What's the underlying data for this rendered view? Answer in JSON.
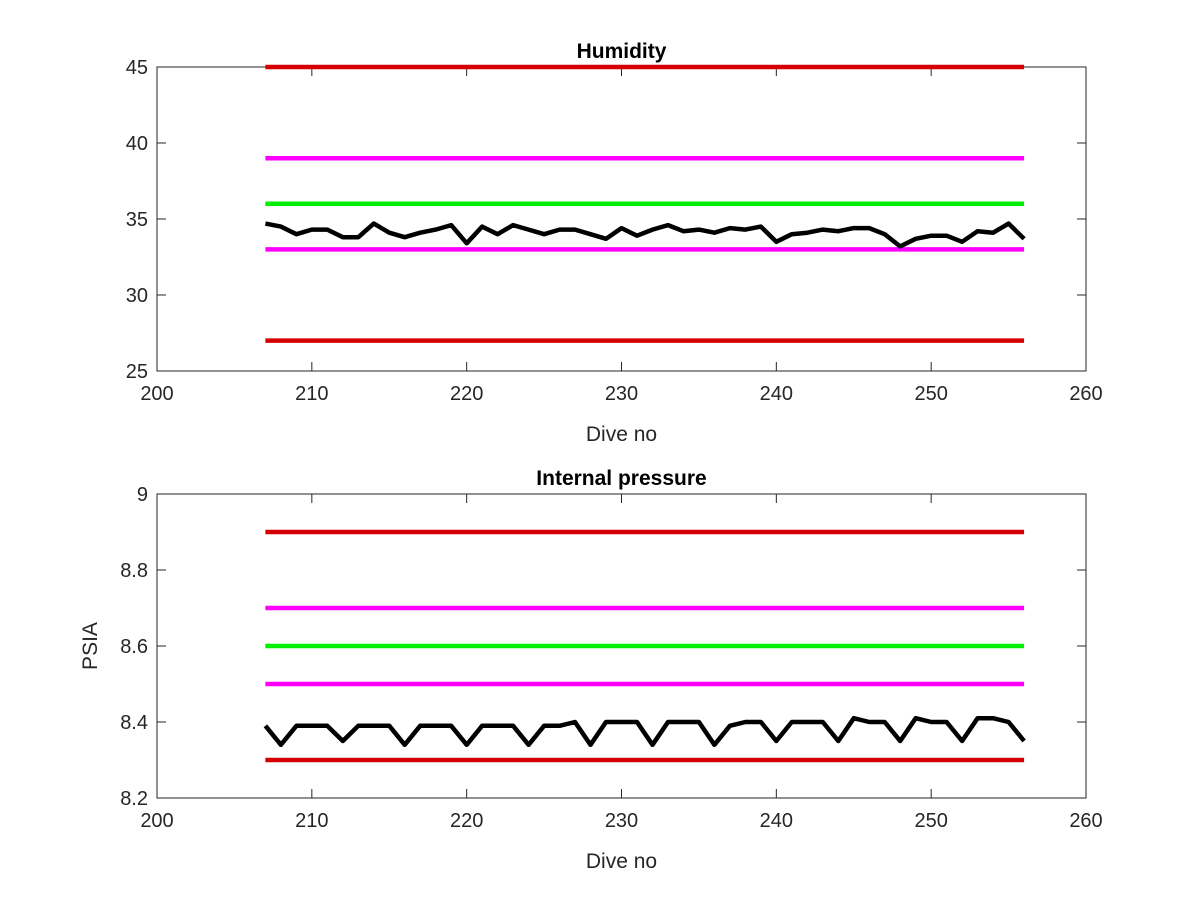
{
  "chart_data": [
    {
      "type": "line",
      "title": "Humidity",
      "xlabel": "Dive no",
      "ylabel": "",
      "xlim": [
        200,
        260
      ],
      "ylim": [
        25,
        45
      ],
      "xticks": [
        200,
        210,
        220,
        230,
        240,
        250,
        260
      ],
      "yticks": [
        25,
        30,
        35,
        40,
        45
      ],
      "grid": false,
      "legend": "none",
      "reference_lines": [
        {
          "y": 45,
          "x": [
            207,
            256
          ],
          "color": "#d40000"
        },
        {
          "y": 39,
          "x": [
            207,
            256
          ],
          "color": "#ff00ff"
        },
        {
          "y": 36,
          "x": [
            207,
            256
          ],
          "color": "#00ee00"
        },
        {
          "y": 33,
          "x": [
            207,
            256
          ],
          "color": "#ff00ff"
        },
        {
          "y": 27,
          "x": [
            207,
            256
          ],
          "color": "#d40000"
        }
      ],
      "series": [
        {
          "color": "#000000",
          "x": [
            207,
            208,
            209,
            210,
            211,
            212,
            213,
            214,
            215,
            216,
            217,
            218,
            219,
            220,
            221,
            222,
            223,
            224,
            225,
            226,
            227,
            228,
            229,
            230,
            231,
            232,
            233,
            234,
            235,
            236,
            237,
            238,
            239,
            240,
            241,
            242,
            243,
            244,
            245,
            246,
            247,
            248,
            249,
            250,
            251,
            252,
            253,
            254,
            255,
            256
          ],
          "y": [
            34.7,
            34.5,
            34.0,
            34.3,
            34.3,
            33.8,
            33.8,
            34.7,
            34.1,
            33.8,
            34.1,
            34.3,
            34.6,
            33.4,
            34.5,
            34.0,
            34.6,
            34.3,
            34.0,
            34.3,
            34.3,
            34.0,
            33.7,
            34.4,
            33.9,
            34.3,
            34.6,
            34.2,
            34.3,
            34.1,
            34.4,
            34.3,
            34.5,
            33.5,
            34.0,
            34.1,
            34.3,
            34.2,
            34.4,
            34.4,
            34.0,
            33.2,
            33.7,
            33.9,
            33.9,
            33.5,
            34.2,
            34.1,
            34.7,
            33.7
          ]
        }
      ]
    },
    {
      "type": "line",
      "title": "Internal pressure",
      "xlabel": "Dive no",
      "ylabel": "PSIA",
      "xlim": [
        200,
        260
      ],
      "ylim": [
        8.2,
        9.0
      ],
      "xticks": [
        200,
        210,
        220,
        230,
        240,
        250,
        260
      ],
      "yticks": [
        8.2,
        8.4,
        8.6,
        8.8,
        9.0
      ],
      "ytick_labels": [
        "8.2",
        "8.4",
        "8.6",
        "8.8",
        "9"
      ],
      "grid": false,
      "legend": "none",
      "reference_lines": [
        {
          "y": 8.9,
          "x": [
            207,
            256
          ],
          "color": "#d40000"
        },
        {
          "y": 8.7,
          "x": [
            207,
            256
          ],
          "color": "#ff00ff"
        },
        {
          "y": 8.6,
          "x": [
            207,
            256
          ],
          "color": "#00ee00"
        },
        {
          "y": 8.5,
          "x": [
            207,
            256
          ],
          "color": "#ff00ff"
        },
        {
          "y": 8.3,
          "x": [
            207,
            256
          ],
          "color": "#d40000"
        }
      ],
      "series": [
        {
          "color": "#000000",
          "x": [
            207,
            208,
            209,
            210,
            211,
            212,
            213,
            214,
            215,
            216,
            217,
            218,
            219,
            220,
            221,
            222,
            223,
            224,
            225,
            226,
            227,
            228,
            229,
            230,
            231,
            232,
            233,
            234,
            235,
            236,
            237,
            238,
            239,
            240,
            241,
            242,
            243,
            244,
            245,
            246,
            247,
            248,
            249,
            250,
            251,
            252,
            253,
            254,
            255,
            256
          ],
          "y": [
            8.39,
            8.34,
            8.39,
            8.39,
            8.39,
            8.35,
            8.39,
            8.39,
            8.39,
            8.34,
            8.39,
            8.39,
            8.39,
            8.34,
            8.39,
            8.39,
            8.39,
            8.34,
            8.39,
            8.39,
            8.4,
            8.34,
            8.4,
            8.4,
            8.4,
            8.34,
            8.4,
            8.4,
            8.4,
            8.34,
            8.39,
            8.4,
            8.4,
            8.35,
            8.4,
            8.4,
            8.4,
            8.35,
            8.41,
            8.4,
            8.4,
            8.35,
            8.41,
            8.4,
            8.4,
            8.35,
            8.41,
            8.41,
            8.4,
            8.35
          ]
        }
      ]
    }
  ]
}
